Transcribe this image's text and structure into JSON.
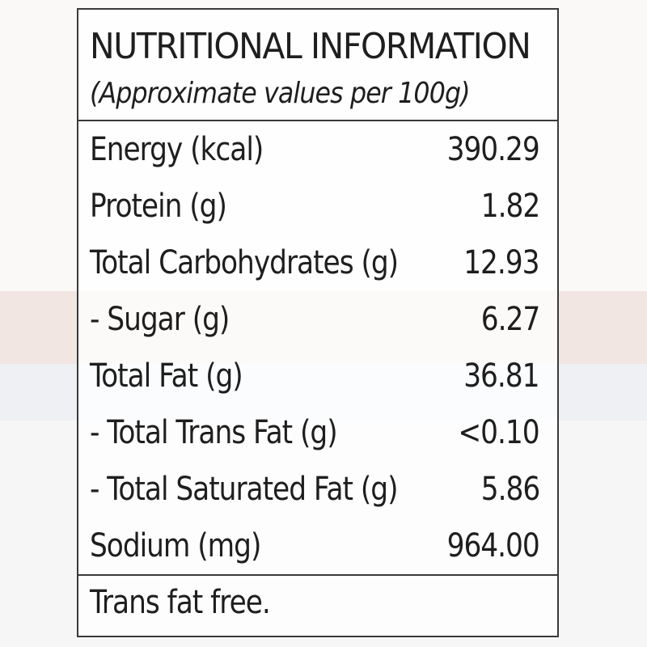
{
  "label": {
    "title": "NUTRITIONAL INFORMATION",
    "subtitle": "(Approximate values per 100g)",
    "rows": [
      {
        "name": "Energy (kcal)",
        "value": "390.29"
      },
      {
        "name": "Protein (g)",
        "value": "1.82"
      },
      {
        "name": "Total Carbohydrates (g)",
        "value": "12.93"
      },
      {
        "name": "- Sugar (g)",
        "value": "6.27"
      },
      {
        "name": "Total Fat (g)",
        "value": "36.81"
      },
      {
        "name": "- Total Trans Fat (g)",
        "value": "<0.10"
      },
      {
        "name": "- Total Saturated Fat (g)",
        "value": "5.86"
      },
      {
        "name": "Sodium (mg)",
        "value": "964.00"
      }
    ],
    "footer": "Trans fat free."
  },
  "colors": {
    "text": "#1e1e1e",
    "border": "#3a3a3a",
    "background": "#fbf9f8"
  }
}
